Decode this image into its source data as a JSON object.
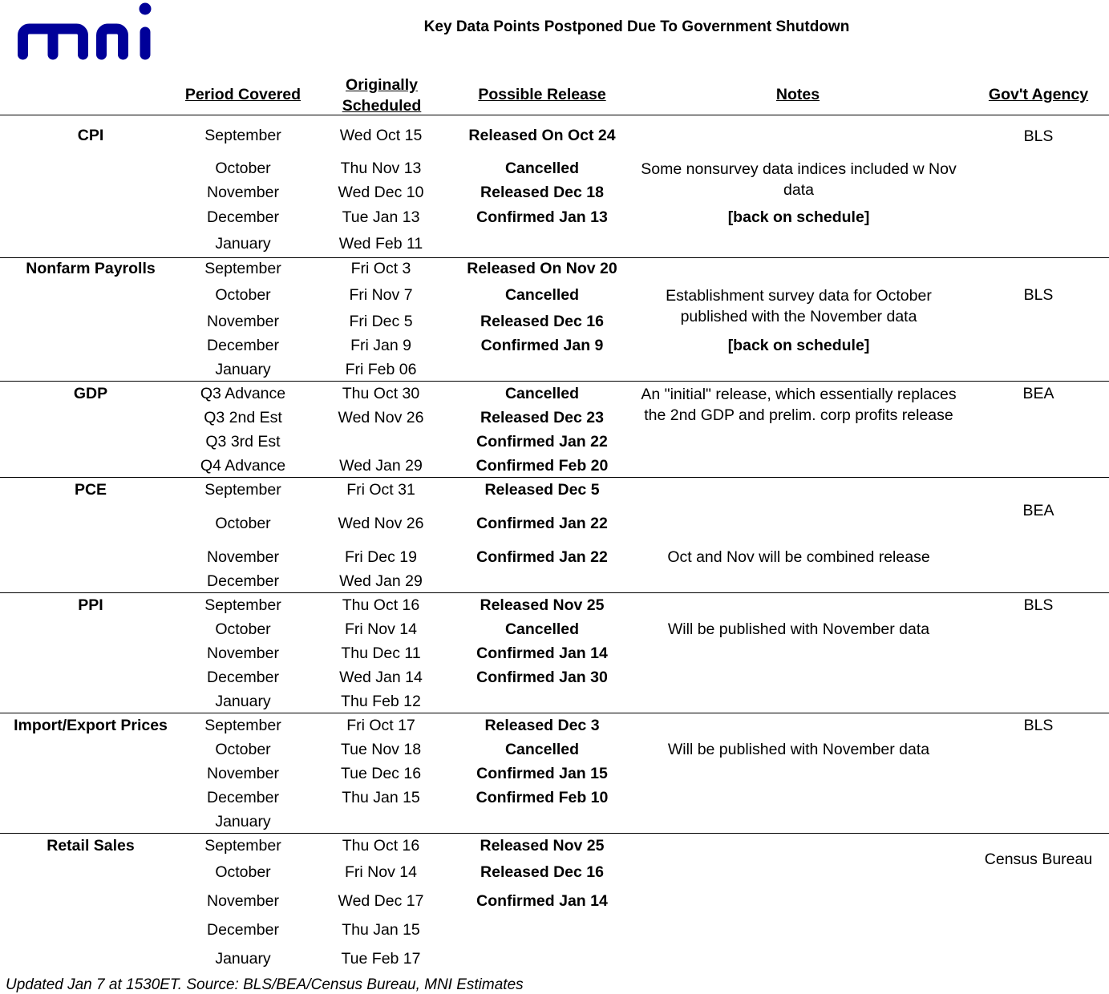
{
  "logo": {
    "text": "mni",
    "color": "#000099"
  },
  "title": "Key Data Points Postponed Due To Government Shutdown",
  "headers": {
    "period": "Period Covered",
    "original_line1": "Originally",
    "original_line2": "Scheduled",
    "release": "Possible Release",
    "notes": "Notes",
    "agency": "Gov't Agency"
  },
  "groups": [
    {
      "name": "CPI",
      "agency": "BLS",
      "rows": [
        {
          "period": "September",
          "original": "Wed Oct 15",
          "release": "Released On Oct 24"
        },
        {
          "period": "October",
          "original": "Thu Nov 13",
          "release": "Cancelled"
        },
        {
          "period": "November",
          "original": "Wed Dec 10",
          "release": "Released Dec 18"
        },
        {
          "period": "December",
          "original": "Tue Jan 13",
          "release": "Confirmed Jan 13"
        },
        {
          "period": "January",
          "original": "Wed Feb 11",
          "release": ""
        }
      ],
      "notes": [
        {
          "text": "Some nonsurvey data indices included w Nov",
          "bold": false
        },
        {
          "text": "data",
          "bold": false
        },
        {
          "text": "[back on schedule]",
          "bold": true
        }
      ]
    },
    {
      "name": "Nonfarm Payrolls",
      "agency": "BLS",
      "rows": [
        {
          "period": "September",
          "original": "Fri Oct 3",
          "release": "Released On Nov 20"
        },
        {
          "period": "October",
          "original": "Fri Nov 7",
          "release": "Cancelled"
        },
        {
          "period": "November",
          "original": "Fri Dec 5",
          "release": "Released Dec 16"
        },
        {
          "period": "December",
          "original": "Fri Jan 9",
          "release": "Confirmed Jan 9"
        },
        {
          "period": "January",
          "original": "Fri Feb 06",
          "release": ""
        }
      ],
      "notes": [
        {
          "text": "Establishment survey data for October",
          "bold": false
        },
        {
          "text": "published with the November data",
          "bold": false
        },
        {
          "text": "[back on schedule]",
          "bold": true
        }
      ]
    },
    {
      "name": "GDP",
      "agency": "BEA",
      "rows": [
        {
          "period": "Q3 Advance",
          "original": "Thu Oct 30",
          "release": "Cancelled"
        },
        {
          "period": "Q3 2nd Est",
          "original": "Wed Nov 26",
          "release": "Released Dec 23"
        },
        {
          "period": "Q3 3rd Est",
          "original": "",
          "release": "Confirmed Jan 22"
        },
        {
          "period": "Q4 Advance",
          "original": "Wed Jan 29",
          "release": "Confirmed Feb 20"
        }
      ],
      "notes": [
        {
          "text": "An \"initial\" release, which essentially replaces",
          "bold": false
        },
        {
          "text": "the 2nd GDP and prelim. corp  profits release",
          "bold": false
        }
      ]
    },
    {
      "name": "PCE",
      "agency": "BEA",
      "rows": [
        {
          "period": "September",
          "original": "Fri Oct 31",
          "release": "Released Dec 5"
        },
        {
          "period": "October",
          "original": "Wed Nov 26",
          "release": "Confirmed Jan 22"
        },
        {
          "period": "November",
          "original": "Fri Dec 19",
          "release": "Confirmed Jan 22"
        },
        {
          "period": "December",
          "original": "Wed Jan 29",
          "release": ""
        }
      ],
      "notes": [
        {
          "text": "Oct and Nov will be combined release",
          "bold": false
        }
      ]
    },
    {
      "name": "PPI",
      "agency": "BLS",
      "rows": [
        {
          "period": "September",
          "original": "Thu Oct 16",
          "release": "Released Nov 25"
        },
        {
          "period": "October",
          "original": "Fri Nov 14",
          "release": "Cancelled"
        },
        {
          "period": "November",
          "original": "Thu Dec 11",
          "release": "Confirmed Jan 14"
        },
        {
          "period": "December",
          "original": "Wed Jan 14",
          "release": "Confirmed Jan 30"
        },
        {
          "period": "January",
          "original": "Thu Feb 12",
          "release": ""
        }
      ],
      "notes": [
        {
          "text": "Will be published with November data",
          "bold": false
        }
      ]
    },
    {
      "name": "Import/Export Prices",
      "agency": "BLS",
      "rows": [
        {
          "period": "September",
          "original": "Fri Oct 17",
          "release": "Released Dec 3"
        },
        {
          "period": "October",
          "original": "Tue Nov 18",
          "release": "Cancelled"
        },
        {
          "period": "November",
          "original": "Tue Dec 16",
          "release": "Confirmed Jan 15"
        },
        {
          "period": "December",
          "original": "Thu Jan 15",
          "release": "Confirmed Feb 10"
        },
        {
          "period": "January",
          "original": "",
          "release": ""
        }
      ],
      "notes": [
        {
          "text": "Will be published with November data",
          "bold": false
        }
      ]
    },
    {
      "name": "Retail Sales",
      "agency": "Census Bureau",
      "rows": [
        {
          "period": "September",
          "original": "Thu Oct 16",
          "release": "Released Nov 25"
        },
        {
          "period": "October",
          "original": "Fri Nov 14",
          "release": "Released Dec 16"
        },
        {
          "period": "November",
          "original": "Wed Dec 17",
          "release": "Confirmed Jan 14"
        },
        {
          "period": "December",
          "original": "Thu Jan 15",
          "release": ""
        },
        {
          "period": "January",
          "original": "Tue Feb 17",
          "release": ""
        }
      ],
      "notes": []
    }
  ],
  "footer": "Updated Jan 7 at 1530ET. Source: BLS/BEA/Census Bureau, MNI Estimates"
}
